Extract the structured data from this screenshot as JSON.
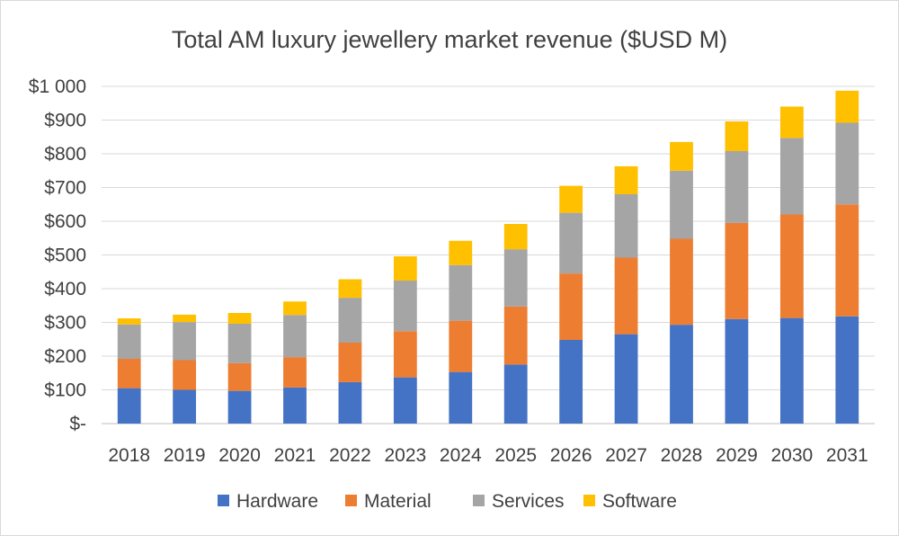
{
  "chart_data": {
    "type": "bar",
    "stacked": true,
    "title": "Total AM luxury jewellery market revenue ($USD M)",
    "xlabel": "",
    "ylabel": "",
    "categories": [
      "2018",
      "2019",
      "2020",
      "2021",
      "2022",
      "2023",
      "2024",
      "2025",
      "2026",
      "2027",
      "2028",
      "2029",
      "2030",
      "2031"
    ],
    "ylim": [
      0,
      1000
    ],
    "yticks": [
      0,
      100,
      200,
      300,
      400,
      500,
      600,
      700,
      800,
      900,
      1000
    ],
    "ytick_labels": [
      "$-",
      "$100",
      "$200",
      "$300",
      "$400",
      "$500",
      "$600",
      "$700",
      "$800",
      "$900",
      "$1 000"
    ],
    "grid": true,
    "legend_position": "bottom",
    "series": [
      {
        "name": "Hardware",
        "color": "#4472C4",
        "values": [
          105,
          100,
          97,
          107,
          123,
          137,
          153,
          175,
          248,
          265,
          293,
          310,
          313,
          318
        ]
      },
      {
        "name": "Material",
        "color": "#ED7D31",
        "values": [
          87,
          88,
          82,
          90,
          117,
          137,
          152,
          172,
          197,
          227,
          255,
          285,
          307,
          332
        ]
      },
      {
        "name": "Services",
        "color": "#A5A5A5",
        "values": [
          102,
          113,
          117,
          125,
          133,
          150,
          165,
          170,
          180,
          188,
          202,
          213,
          227,
          242
        ]
      },
      {
        "name": "Software",
        "color": "#FFC000",
        "values": [
          18,
          22,
          32,
          40,
          55,
          72,
          72,
          75,
          80,
          83,
          85,
          88,
          93,
          95
        ]
      }
    ]
  }
}
